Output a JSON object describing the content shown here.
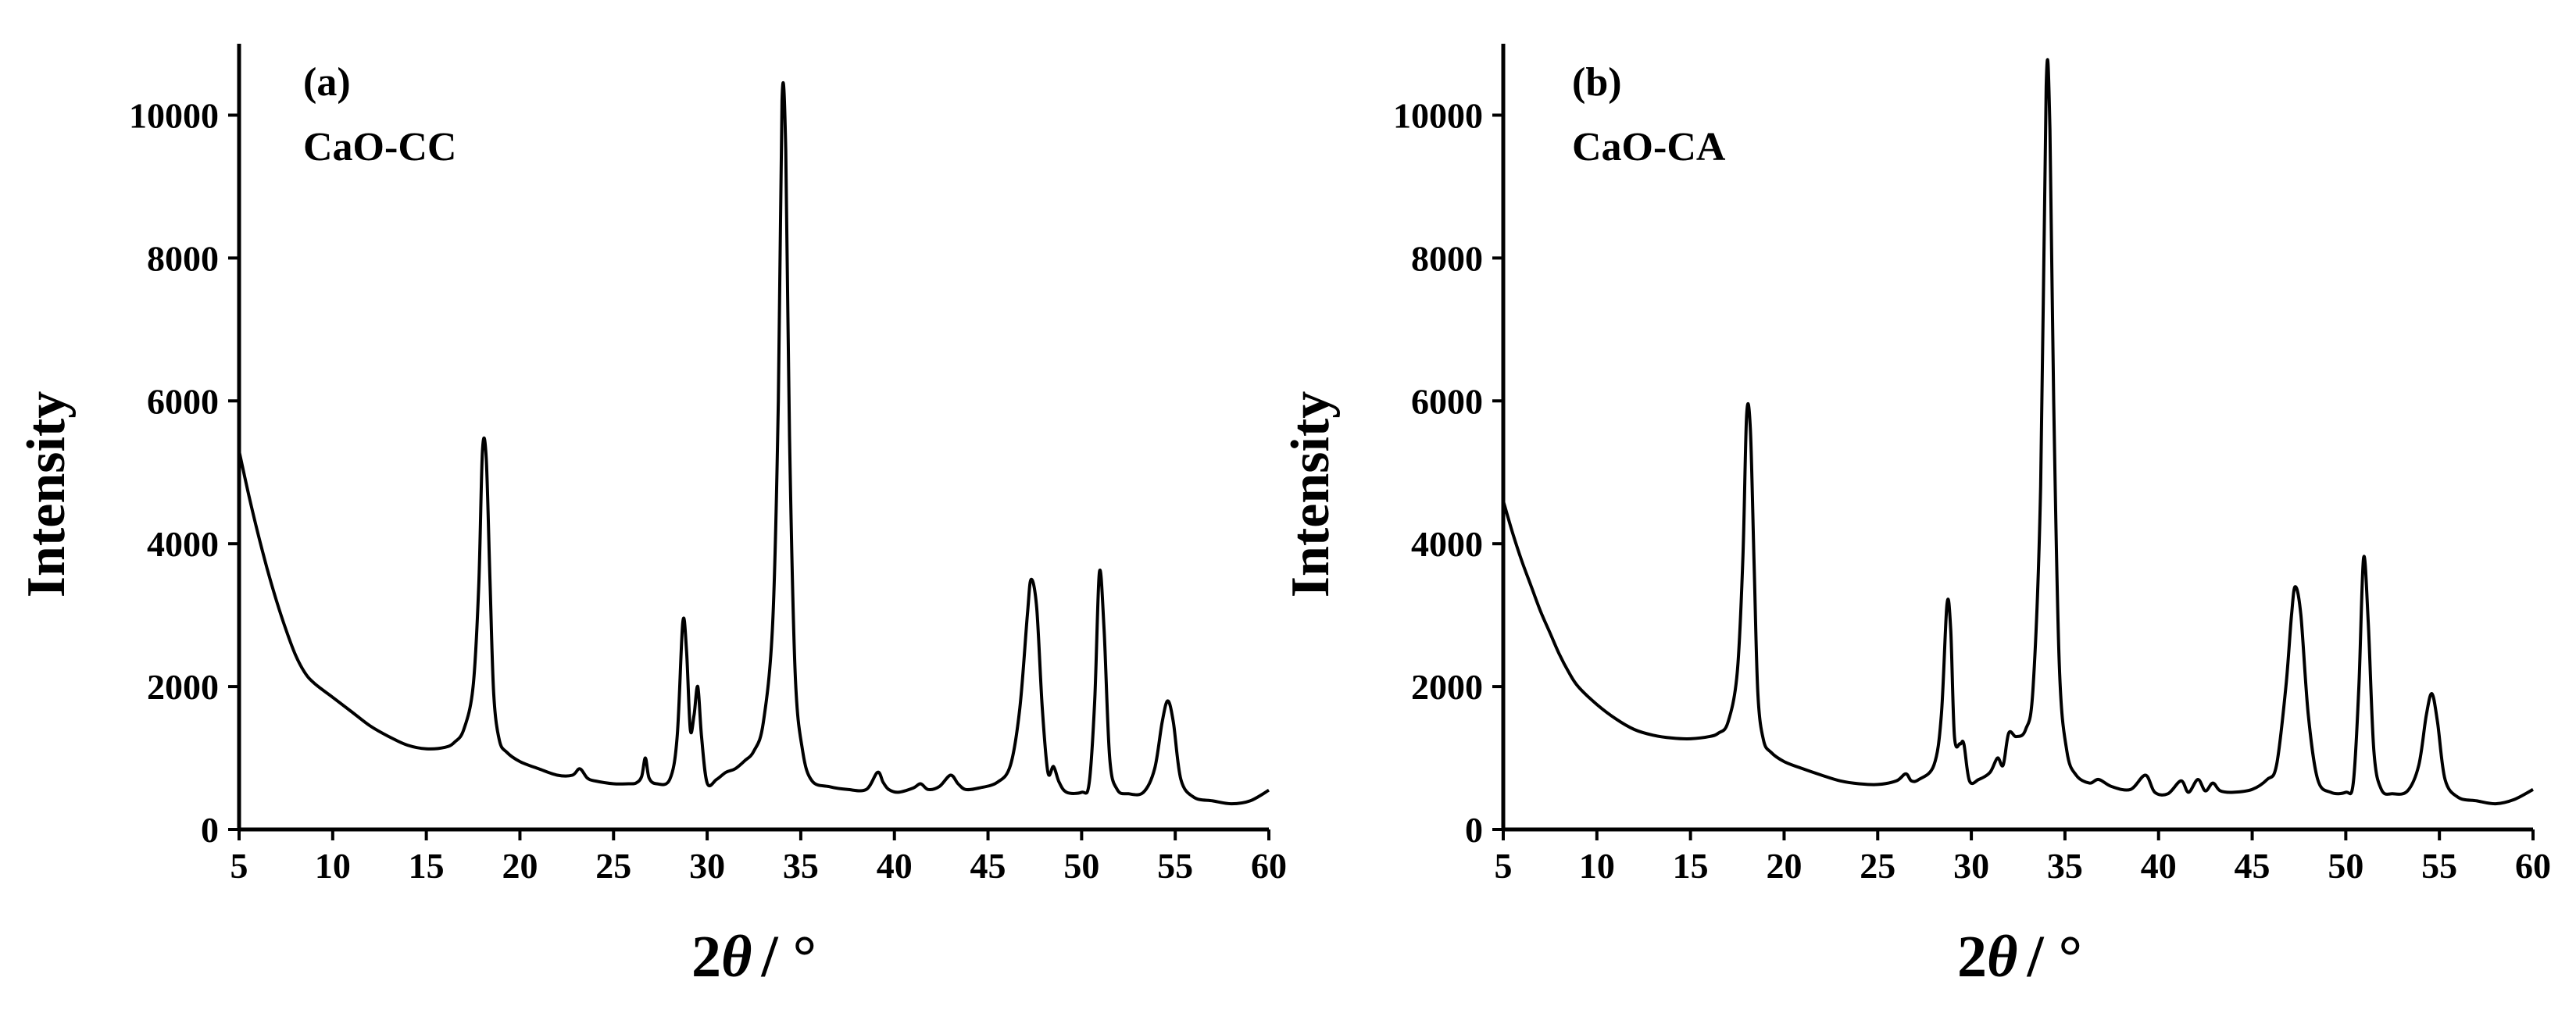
{
  "chart_data": [
    {
      "type": "line",
      "panel_label": "(a)",
      "sample_label": "CaO-CC",
      "title": "",
      "xlabel_prefix": "2",
      "xlabel_symbol": "θ",
      "xlabel_suffix": "/ °",
      "ylabel": "Intensity",
      "xlim": [
        5,
        60
      ],
      "ylim": [
        0,
        11000
      ],
      "xticks": [
        5,
        10,
        15,
        20,
        25,
        30,
        35,
        40,
        45,
        50,
        55,
        60
      ],
      "yticks": [
        0,
        2000,
        4000,
        6000,
        8000,
        10000
      ],
      "series": [
        {
          "name": "CaO-CC",
          "x": [
            5,
            5.5,
            6,
            6.5,
            7,
            7.5,
            8,
            8.5,
            9,
            10,
            11,
            12,
            13,
            14,
            15,
            16,
            16.5,
            17,
            17.5,
            17.8,
            18.0,
            18.2,
            18.4,
            18.6,
            18.9,
            19.3,
            20,
            21,
            22,
            22.8,
            23.2,
            23.6,
            24,
            25,
            25.8,
            26.2,
            26.5,
            26.7,
            26.9,
            27.3,
            28,
            28.4,
            28.7,
            28.9,
            29.1,
            29.3,
            29.5,
            29.7,
            30,
            30.5,
            31,
            31.5,
            32,
            32.5,
            33,
            33.5,
            33.8,
            34.0,
            34.2,
            34.4,
            34.7,
            35.1,
            35.6,
            36.5,
            37.5,
            38.5,
            39.1,
            39.4,
            39.7,
            40.2,
            41,
            41.4,
            41.8,
            42.4,
            43.0,
            43.4,
            43.8,
            44.5,
            45.5,
            46.2,
            46.7,
            47.1,
            47.3,
            47.6,
            47.9,
            48.2,
            48.5,
            48.8,
            49.2,
            50,
            50.4,
            50.7,
            50.95,
            51.2,
            51.5,
            51.9,
            52.5,
            53.3,
            53.9,
            54.3,
            54.6,
            54.9,
            55.3,
            56,
            57,
            58,
            59,
            60
          ],
          "y": [
            5300,
            4700,
            4150,
            3650,
            3200,
            2800,
            2450,
            2200,
            2050,
            1850,
            1650,
            1450,
            1300,
            1180,
            1130,
            1150,
            1220,
            1400,
            2000,
            3400,
            5300,
            5200,
            3500,
            1900,
            1250,
            1080,
            950,
            850,
            760,
            760,
            850,
            720,
            680,
            640,
            640,
            650,
            740,
            1000,
            720,
            640,
            700,
            1300,
            2900,
            2500,
            1400,
            1600,
            2000,
            1300,
            650,
            700,
            800,
            850,
            960,
            1100,
            1500,
            2900,
            6000,
            10200,
            9500,
            5500,
            2200,
            1100,
            680,
            600,
            560,
            560,
            800,
            660,
            560,
            520,
            580,
            640,
            560,
            600,
            760,
            640,
            560,
            580,
            660,
            900,
            1700,
            3000,
            3500,
            3100,
            1700,
            800,
            880,
            660,
            520,
            520,
            640,
            1800,
            3600,
            2800,
            1000,
            560,
            500,
            520,
            850,
            1500,
            1800,
            1500,
            700,
            450,
            400,
            360,
            400,
            550
          ]
        }
      ]
    },
    {
      "type": "line",
      "panel_label": "(b)",
      "sample_label": "CaO-CA",
      "title": "",
      "xlabel_prefix": "2",
      "xlabel_symbol": "θ",
      "xlabel_suffix": "/ °",
      "ylabel": "Intensity",
      "xlim": [
        5,
        60
      ],
      "ylim": [
        0,
        11000
      ],
      "xticks": [
        5,
        10,
        15,
        20,
        25,
        30,
        35,
        40,
        45,
        50,
        55,
        60
      ],
      "yticks": [
        0,
        2000,
        4000,
        6000,
        8000,
        10000
      ],
      "series": [
        {
          "name": "CaO-CA",
          "x": [
            5,
            5.5,
            6,
            6.5,
            7,
            7.5,
            8,
            8.5,
            9,
            10,
            11,
            12,
            13,
            14,
            15,
            16,
            16.5,
            17,
            17.5,
            17.8,
            18.0,
            18.2,
            18.4,
            18.6,
            18.9,
            19.3,
            20,
            21,
            22,
            23,
            24,
            25,
            26,
            26.5,
            26.8,
            27.2,
            28,
            28.4,
            28.7,
            28.9,
            29.1,
            29.4,
            29.6,
            29.9,
            30.4,
            31,
            31.4,
            31.7,
            32.0,
            32.4,
            32.9,
            33.3,
            33.7,
            34.0,
            34.2,
            34.4,
            34.7,
            35.1,
            35.6,
            36.3,
            36.8,
            37.5,
            38.5,
            39.3,
            39.8,
            40.5,
            41.2,
            41.6,
            42.1,
            42.5,
            42.9,
            43.3,
            44,
            45,
            45.8,
            46.3,
            46.8,
            47.1,
            47.3,
            47.6,
            48.0,
            48.5,
            49.2,
            50,
            50.4,
            50.7,
            50.95,
            51.2,
            51.5,
            51.9,
            52.5,
            53.3,
            53.9,
            54.3,
            54.6,
            54.9,
            55.3,
            56,
            57,
            58,
            59,
            60
          ],
          "y": [
            4600,
            4150,
            3750,
            3400,
            3050,
            2750,
            2450,
            2200,
            2000,
            1750,
            1550,
            1400,
            1320,
            1280,
            1270,
            1300,
            1350,
            1500,
            2200,
            3800,
            5800,
            5600,
            3700,
            1900,
            1250,
            1080,
            950,
            850,
            760,
            680,
            640,
            630,
            680,
            780,
            680,
            700,
            900,
            1600,
            3150,
            2800,
            1300,
            1200,
            1200,
            680,
            700,
            800,
            1000,
            900,
            1350,
            1300,
            1400,
            2000,
            4800,
            10400,
            9800,
            6000,
            2300,
            1100,
            760,
            650,
            700,
            600,
            560,
            760,
            520,
            500,
            680,
            520,
            700,
            540,
            650,
            540,
            520,
            560,
            700,
            900,
            2000,
            3000,
            3400,
            3000,
            1600,
            700,
            520,
            520,
            650,
            2000,
            3800,
            2900,
            1100,
            560,
            500,
            540,
            900,
            1600,
            1900,
            1500,
            700,
            450,
            400,
            360,
            420,
            560
          ]
        }
      ]
    }
  ]
}
